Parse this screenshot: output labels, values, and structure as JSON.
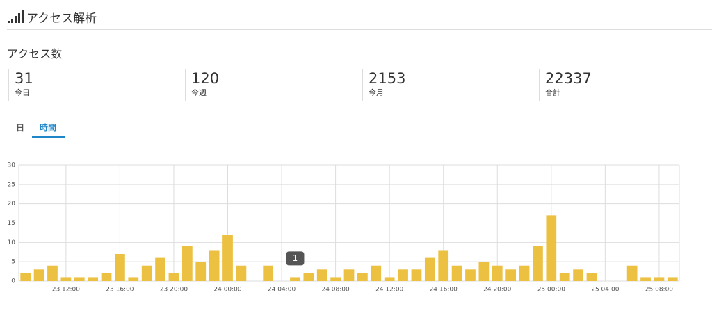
{
  "header": {
    "title": "アクセス解析"
  },
  "section_title": "アクセス数",
  "stats": [
    {
      "value": 31,
      "label": "今日"
    },
    {
      "value": 120,
      "label": "今週"
    },
    {
      "value": 2153,
      "label": "今月"
    },
    {
      "value": 22337,
      "label": "合計"
    }
  ],
  "tabs": [
    "日",
    "時間"
  ],
  "chart_data": {
    "type": "bar",
    "color": "#ecc040",
    "categories": [
      null,
      null,
      null,
      "23 12:00",
      null,
      null,
      null,
      "23 16:00",
      null,
      null,
      null,
      "23 20:00",
      null,
      null,
      null,
      "24 00:00",
      null,
      null,
      null,
      "24 04:00",
      null,
      null,
      null,
      "24 08:00",
      null,
      null,
      null,
      "24 12:00",
      null,
      null,
      null,
      "24 16:00",
      null,
      null,
      null,
      "24 20:00",
      null,
      null,
      null,
      "25 00:00",
      null,
      null,
      null,
      "25 04:00",
      null,
      null,
      null,
      "25 08:00",
      null
    ],
    "values": [
      2,
      3,
      4,
      1,
      1,
      1,
      2,
      7,
      1,
      4,
      6,
      2,
      9,
      5,
      8,
      12,
      4,
      0,
      4,
      0,
      1,
      2,
      3,
      1,
      3,
      2,
      4,
      1,
      3,
      3,
      6,
      8,
      4,
      3,
      5,
      4,
      3,
      4,
      9,
      17,
      2,
      3,
      2,
      0,
      0,
      4,
      1,
      1,
      1
    ],
    "ylim": [
      0,
      30
    ],
    "yticks": [
      0,
      5,
      10,
      15,
      20,
      25,
      30
    ],
    "grid": true
  }
}
